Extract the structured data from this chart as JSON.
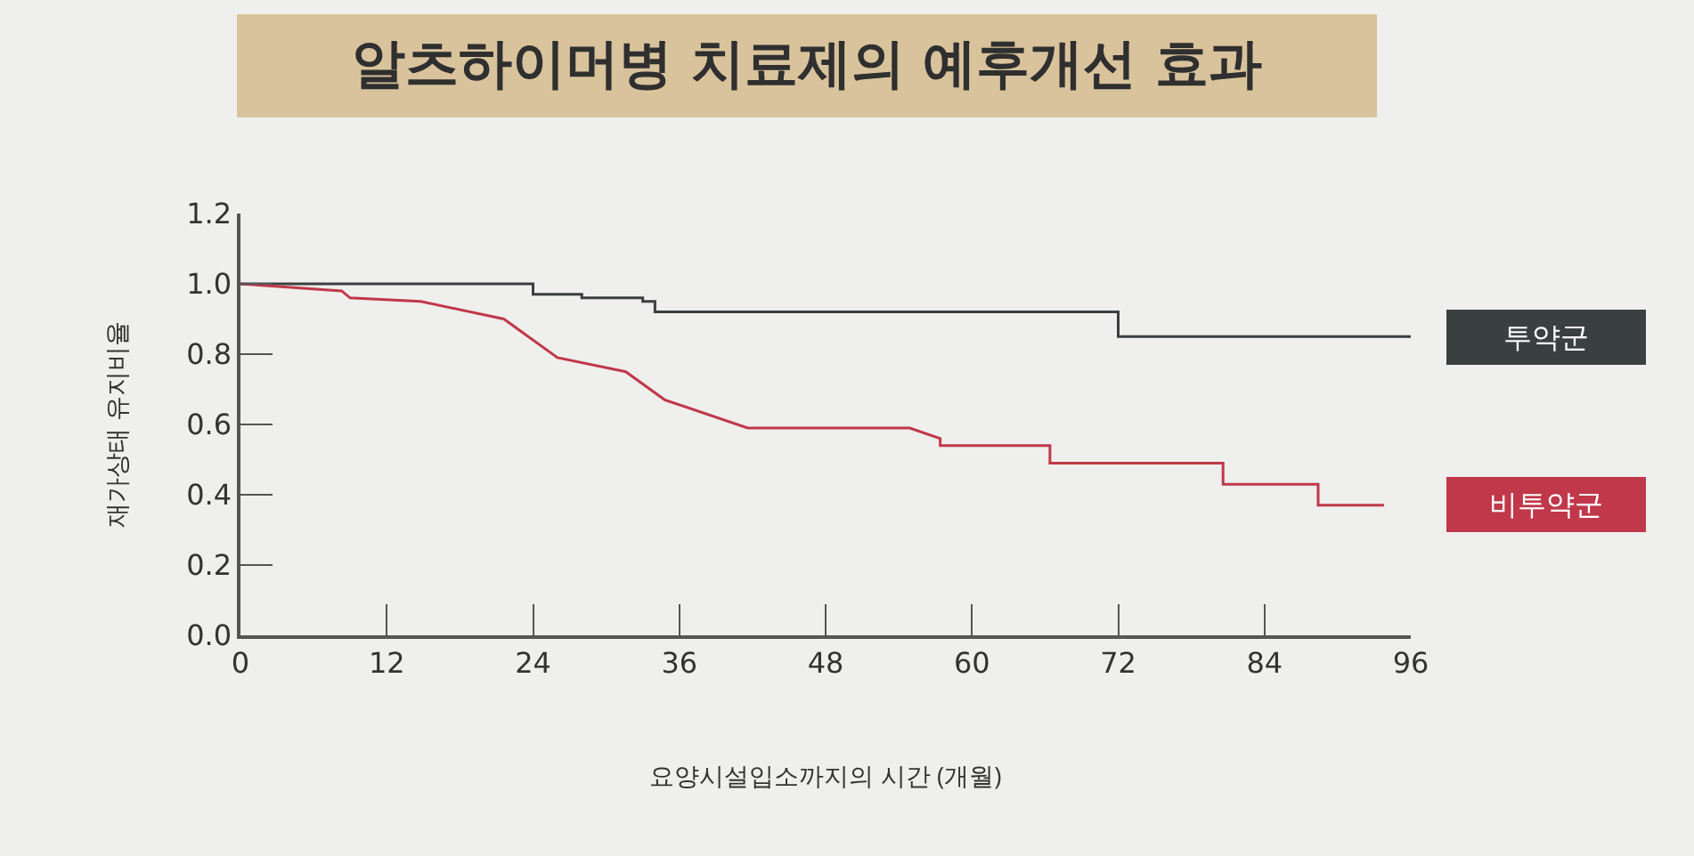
{
  "chart_data": {
    "type": "line",
    "title": "알츠하이머병 치료제의 예후개선 효과",
    "xlabel": "요양시설입소까지의 시간 (개월)",
    "ylabel": "재가상태 유지비율",
    "xlim": [
      0,
      96
    ],
    "xticks": [
      0,
      12,
      24,
      36,
      48,
      60,
      72,
      84,
      96
    ],
    "ylim": [
      0,
      1.2
    ],
    "yticks": [
      {
        "value": 0,
        "label": "0.0"
      },
      {
        "value": 0.2,
        "label": "0.2"
      },
      {
        "value": 0.4,
        "label": "0.4"
      },
      {
        "value": 0.6,
        "label": "0.6"
      },
      {
        "value": 0.8,
        "label": "0.8"
      },
      {
        "value": 1,
        "label": "1.0"
      },
      {
        "value": 1.2,
        "label": "1.2"
      }
    ],
    "legend": false,
    "marker": "none",
    "line_style": "solid",
    "series": [
      {
        "name": "투약군",
        "color": "#3a3f3f",
        "x": [
          0,
          24,
          24,
          28,
          28,
          33,
          33,
          34,
          34,
          72,
          72,
          96
        ],
        "values": [
          1.0,
          1.0,
          0.97,
          0.97,
          0.96,
          0.96,
          0.95,
          0.95,
          0.92,
          0.92,
          0.85,
          0.85
        ]
      },
      {
        "name": "비투약군",
        "color": "#c0384a",
        "x": [
          0,
          8.3,
          9,
          14.8,
          21.6,
          26,
          31.6,
          34.8,
          41.6,
          54.9,
          57.4,
          57.4,
          66.4,
          66.4,
          80.6,
          80.6,
          88.4,
          88.4,
          93.8
        ],
        "values": [
          1.0,
          0.98,
          0.96,
          0.95,
          0.9,
          0.79,
          0.75,
          0.67,
          0.59,
          0.59,
          0.56,
          0.54,
          0.54,
          0.49,
          0.49,
          0.43,
          0.43,
          0.37,
          0.37
        ]
      }
    ]
  }
}
